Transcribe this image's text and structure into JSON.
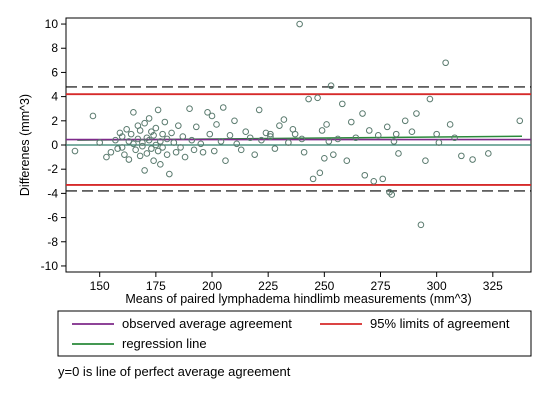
{
  "chart_data": {
    "type": "scatter",
    "title": "",
    "xlabel": "Means of paired lymphadema hindlimb measurements (mm^3)",
    "ylabel": "Differenes (mm^3)",
    "xlim": [
      135,
      342
    ],
    "ylim": [
      -10.5,
      10.5
    ],
    "xticks": [
      150,
      175,
      200,
      225,
      250,
      275,
      300,
      325
    ],
    "yticks": [
      -10,
      -8,
      -6,
      -4,
      -2,
      0,
      2,
      4,
      6,
      8,
      10
    ],
    "grid": false,
    "reference_lines": {
      "zero": 0,
      "observed_average_agreement": 0.45,
      "limits_of_agreement_95": [
        4.2,
        -3.3
      ],
      "dashed_bounds": [
        4.8,
        -3.8
      ],
      "regression_line": {
        "x": [
          140,
          338
        ],
        "y": [
          0.4,
          0.72
        ]
      }
    },
    "series": [
      {
        "points": [
          [
            139,
            -0.5
          ],
          [
            147,
            2.4
          ],
          [
            150,
            0.2
          ],
          [
            153,
            -1.0
          ],
          [
            155,
            -0.6
          ],
          [
            157,
            0.4
          ],
          [
            158,
            -0.3
          ],
          [
            159,
            1.0
          ],
          [
            160,
            0.7
          ],
          [
            160,
            -0.2
          ],
          [
            161,
            -0.8
          ],
          [
            162,
            1.3
          ],
          [
            163,
            0.3
          ],
          [
            163,
            -1.2
          ],
          [
            164,
            0.9
          ],
          [
            165,
            2.7
          ],
          [
            165,
            0.1
          ],
          [
            166,
            -0.4
          ],
          [
            167,
            1.6
          ],
          [
            167,
            0.5
          ],
          [
            168,
            -0.9
          ],
          [
            168,
            1.2
          ],
          [
            169,
            0.2
          ],
          [
            169,
            -0.1
          ],
          [
            170,
            -2.1
          ],
          [
            170,
            1.8
          ],
          [
            171,
            0.6
          ],
          [
            171,
            -0.7
          ],
          [
            172,
            2.2
          ],
          [
            172,
            0.4
          ],
          [
            173,
            -0.3
          ],
          [
            173,
            1.1
          ],
          [
            174,
            -1.3
          ],
          [
            174,
            0.8
          ],
          [
            175,
            0.0
          ],
          [
            175,
            1.4
          ],
          [
            176,
            -0.5
          ],
          [
            176,
            2.9
          ],
          [
            177,
            0.3
          ],
          [
            177,
            -1.6
          ],
          [
            178,
            0.9
          ],
          [
            178,
            -0.2
          ],
          [
            179,
            1.9
          ],
          [
            180,
            0.5
          ],
          [
            180,
            -0.8
          ],
          [
            181,
            -2.4
          ],
          [
            182,
            1.0
          ],
          [
            183,
            0.2
          ],
          [
            184,
            -0.6
          ],
          [
            185,
            1.6
          ],
          [
            186,
            -0.2
          ],
          [
            187,
            0.7
          ],
          [
            188,
            -1.0
          ],
          [
            190,
            3.0
          ],
          [
            191,
            0.4
          ],
          [
            192,
            -0.4
          ],
          [
            193,
            1.5
          ],
          [
            195,
            0.1
          ],
          [
            196,
            -0.6
          ],
          [
            198,
            2.7
          ],
          [
            199,
            0.9
          ],
          [
            200,
            2.4
          ],
          [
            201,
            -0.5
          ],
          [
            202,
            1.7
          ],
          [
            204,
            0.3
          ],
          [
            205,
            3.1
          ],
          [
            206,
            -1.3
          ],
          [
            208,
            0.8
          ],
          [
            210,
            2.0
          ],
          [
            211,
            0.1
          ],
          [
            213,
            -0.4
          ],
          [
            215,
            1.1
          ],
          [
            217,
            0.6
          ],
          [
            219,
            -0.8
          ],
          [
            221,
            2.9
          ],
          [
            222,
            0.4
          ],
          [
            224,
            1.0
          ],
          [
            226,
            0.7
          ],
          [
            228,
            -0.3
          ],
          [
            230,
            1.6
          ],
          [
            232,
            2.1
          ],
          [
            234,
            0.2
          ],
          [
            236,
            1.3
          ],
          [
            237,
            0.9
          ],
          [
            239,
            10.0
          ],
          [
            241,
            -0.6
          ],
          [
            243,
            3.8
          ],
          [
            245,
            -2.8
          ],
          [
            247,
            3.9
          ],
          [
            248,
            -2.3
          ],
          [
            249,
            1.2
          ],
          [
            250,
            -1.1
          ],
          [
            251,
            1.7
          ],
          [
            252,
            0.3
          ],
          [
            253,
            4.9
          ],
          [
            254,
            -0.8
          ],
          [
            256,
            0.5
          ],
          [
            258,
            3.4
          ],
          [
            260,
            -1.3
          ],
          [
            262,
            1.9
          ],
          [
            264,
            0.6
          ],
          [
            267,
            2.6
          ],
          [
            268,
            -2.5
          ],
          [
            270,
            1.2
          ],
          [
            272,
            -3.0
          ],
          [
            274,
            0.8
          ],
          [
            276,
            -2.8
          ],
          [
            278,
            1.5
          ],
          [
            279,
            -3.9
          ],
          [
            280,
            -4.1
          ],
          [
            281,
            0.3
          ],
          [
            283,
            -0.7
          ],
          [
            286,
            2.0
          ],
          [
            289,
            1.1
          ],
          [
            291,
            2.6
          ],
          [
            293,
            -6.6
          ],
          [
            295,
            -1.3
          ],
          [
            297,
            3.8
          ],
          [
            300,
            0.9
          ],
          [
            304,
            6.8
          ],
          [
            306,
            1.7
          ],
          [
            308,
            0.6
          ],
          [
            311,
            -0.9
          ],
          [
            316,
            -1.2
          ],
          [
            323,
            -0.7
          ],
          [
            337,
            2.0
          ],
          [
            301,
            0.2
          ],
          [
            282,
            0.9
          ],
          [
            240,
            0.5
          ],
          [
            226,
            0.9
          ]
        ]
      }
    ],
    "legend": {
      "placement": "bottom",
      "entries": [
        {
          "label": "observed average agreement",
          "color": "#7e2a8a"
        },
        {
          "label": "95% limits of agreement",
          "color": "#d62a2a"
        },
        {
          "label": "regression line",
          "color": "#2a8a3a"
        }
      ]
    },
    "note": "y=0 is line of perfect average agreement",
    "colors": {
      "marker": "#5b7b6f",
      "zero_line": "#2e7d6b",
      "dashed": "#000000"
    }
  }
}
